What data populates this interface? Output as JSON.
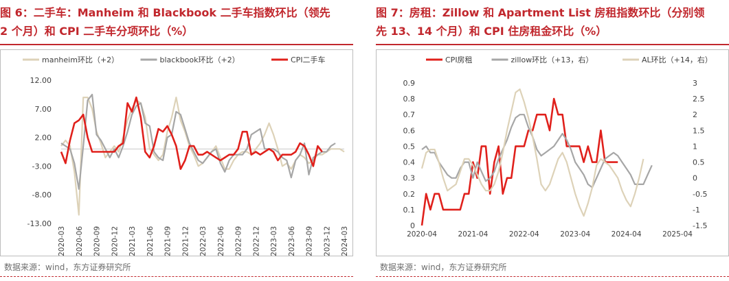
{
  "left_panel": {
    "title_line1": "图 6：二手车：Manheim 和 Blackbook 二手车指数环比（领先",
    "title_line2": "2 个月）和 CPI 二手车分项环比（%）",
    "source": "数据来源：wind，东方证券研究所"
  },
  "right_panel": {
    "title_line1": "图 7：房租：Zillow 和 Apartment List 房租指数环比（分别领",
    "title_line2": "先 13、14 个月）和 CPI 住房租金环比（%）",
    "source": "数据来源：wind，东方证券研究所"
  },
  "chart_data": [
    {
      "type": "line",
      "title": "",
      "xlabel": "",
      "ylabel": "",
      "ylim": [
        -13,
        12
      ],
      "y_ticks": [
        "12.00",
        "7.00",
        "2.00",
        "-3.00",
        "-8.00",
        "-13.00"
      ],
      "x_ticks": [
        "2020-03",
        "2020-06",
        "2020-09",
        "2020-12",
        "2021-03",
        "2021-06",
        "2021-09",
        "2021-12",
        "2022-03",
        "2022-06",
        "2022-09",
        "2022-12",
        "2023-03",
        "2023-06",
        "2023-09",
        "2023-12",
        "2024-03"
      ],
      "legend_position": "top",
      "grid": false,
      "series": [
        {
          "name": "manheim环比（+2）",
          "color": "#ddd2b8",
          "values": [
            0.5,
            1.5,
            0.5,
            -4,
            -11.5,
            9,
            9,
            7,
            3,
            1,
            -1.5,
            -0.5,
            0.5,
            -0.5,
            2,
            5,
            7,
            8.5,
            8,
            5.5,
            0,
            -1,
            -2,
            -1,
            3,
            5.5,
            9,
            5,
            3,
            0.5,
            -1,
            -3,
            -2.5,
            -1.5,
            -0.5,
            0.5,
            -1.5,
            -3.5,
            -3.5,
            -2,
            -1,
            -0.5,
            -0.5,
            -1,
            0,
            1,
            2.5,
            4.5,
            2.5,
            0,
            -3,
            -2.5,
            -3.5,
            -2,
            -1,
            -1.5,
            -2.5,
            -2,
            -1,
            -1,
            -0.5,
            0,
            0,
            0,
            -0.5
          ]
        },
        {
          "name": "blackbook环比（+2）",
          "color": "#a6a6a6",
          "values": [
            1,
            0.5,
            0,
            -2.5,
            -7,
            0.5,
            8.5,
            9.5,
            2.5,
            1.5,
            0,
            -1.5,
            0,
            -1.5,
            0.5,
            3,
            6,
            7.5,
            8,
            4.5,
            4,
            -0.5,
            -1.5,
            -2,
            2,
            2.5,
            6.5,
            6,
            3.5,
            1,
            -0.5,
            -2,
            -2.5,
            -1.5,
            -0.5,
            0,
            -2.5,
            -4,
            -2,
            -1,
            -1,
            -1,
            0,
            2.5,
            3,
            3.5,
            0,
            0,
            0,
            -0.5,
            -1.5,
            -2,
            -5,
            -2,
            -1,
            1,
            -4.5,
            -1.5,
            -1,
            -0.5,
            -0.5,
            0.5,
            1
          ]
        },
        {
          "name": "CPI二手车",
          "color": "#e0201b",
          "values": [
            -0.5,
            -2.5,
            1.5,
            4.5,
            5,
            6,
            2,
            -0.5,
            -0.5,
            -0.5,
            -0.5,
            -0.5,
            -0.5,
            0.5,
            1,
            8,
            6.5,
            9,
            5.5,
            -0.5,
            -1.5,
            0.5,
            3.5,
            3,
            4,
            2.5,
            0.5,
            -3.5,
            -2,
            0.5,
            0.5,
            -1,
            -1,
            -0.5,
            -1,
            -1.5,
            -2,
            -1.5,
            -1,
            -1,
            0,
            3,
            3,
            -1,
            -0.5,
            -1,
            -0.5,
            0,
            -0.5,
            -2,
            -1,
            -1,
            -1,
            -0.5,
            1,
            0.5,
            -1,
            -3,
            0.5,
            -0.5
          ]
        }
      ]
    },
    {
      "type": "line",
      "title": "",
      "xlabel": "",
      "ylabel": "",
      "ylim": [
        0,
        0.9
      ],
      "y2lim": [
        -1.5,
        3
      ],
      "y_ticks": [
        "0.9",
        "0.8",
        "0.7",
        "0.6",
        "0.5",
        "0.4",
        "0.3",
        "0.2",
        "0.1",
        "0"
      ],
      "y2_ticks": [
        "3",
        "2.5",
        "2",
        "1.5",
        "1",
        "0.5",
        "0",
        "-0.5",
        "-1",
        "-1.5"
      ],
      "x_ticks": [
        "2020-04",
        "2021-04",
        "2022-04",
        "2023-04",
        "2024-04",
        "2025-04"
      ],
      "legend_position": "top",
      "grid": false,
      "series": [
        {
          "name": "CPI房租",
          "color": "#e0201b",
          "axis": "left",
          "values": [
            0,
            0.2,
            0.1,
            0.2,
            0.2,
            0.1,
            0.1,
            0.1,
            0.1,
            0.1,
            0.2,
            0.2,
            0.4,
            0.3,
            0.5,
            0.5,
            0.2,
            0.4,
            0.5,
            0.2,
            0.3,
            0.3,
            0.5,
            0.5,
            0.5,
            0.6,
            0.6,
            0.7,
            0.7,
            0.7,
            0.6,
            0.8,
            0.7,
            0.7,
            0.5,
            0.5,
            0.5,
            0.5,
            0.4,
            0.5,
            0.4,
            0.4,
            0.6,
            0.4,
            0.4,
            0.4,
            0.4
          ]
        },
        {
          "name": "zillow环比（+13，右）",
          "color": "#a6a6a6",
          "axis": "right",
          "values": [
            0.9,
            1,
            0.8,
            0.8,
            0.5,
            0.3,
            0.1,
            0,
            0,
            0.3,
            0.5,
            0.5,
            0,
            0.5,
            0.2,
            -0.1,
            0,
            0.2,
            0.6,
            0.9,
            1.2,
            1.6,
            1.9,
            2,
            2,
            1.6,
            1.3,
            0.9,
            0.7,
            0.8,
            0.9,
            1,
            1.2,
            1.4,
            1.2,
            0.9,
            0.5,
            0.3,
            0.1,
            -0.2,
            -0.3,
            0,
            0.3,
            0.6,
            0.7,
            0.8,
            0.7,
            0.5,
            0.3,
            0.1,
            -0.2,
            -0.2,
            -0.2,
            0.1,
            0.4
          ]
        },
        {
          "name": "AL环比（+14，右）",
          "color": "#ddd2b8",
          "axis": "right",
          "values": [
            0.3,
            0.8,
            0.9,
            0.9,
            0.5,
            0,
            -0.4,
            -0.3,
            -0.2,
            0.2,
            0.6,
            0.6,
            0.4,
            0.1,
            -0.2,
            -0.4,
            -0.4,
            -0.2,
            0.2,
            0.8,
            1.5,
            2.1,
            2.7,
            2.8,
            2.4,
            1.9,
            1.3,
            0.6,
            -0.2,
            -0.4,
            -0.2,
            0.2,
            0.6,
            0.8,
            0.5,
            0,
            -0.5,
            -0.9,
            -1.2,
            -0.8,
            -0.3,
            0.4,
            0.6,
            0.5,
            0.4,
            0.2,
            0,
            -0.4,
            -0.7,
            -0.9,
            -0.5,
            0,
            0.6
          ]
        }
      ]
    }
  ]
}
